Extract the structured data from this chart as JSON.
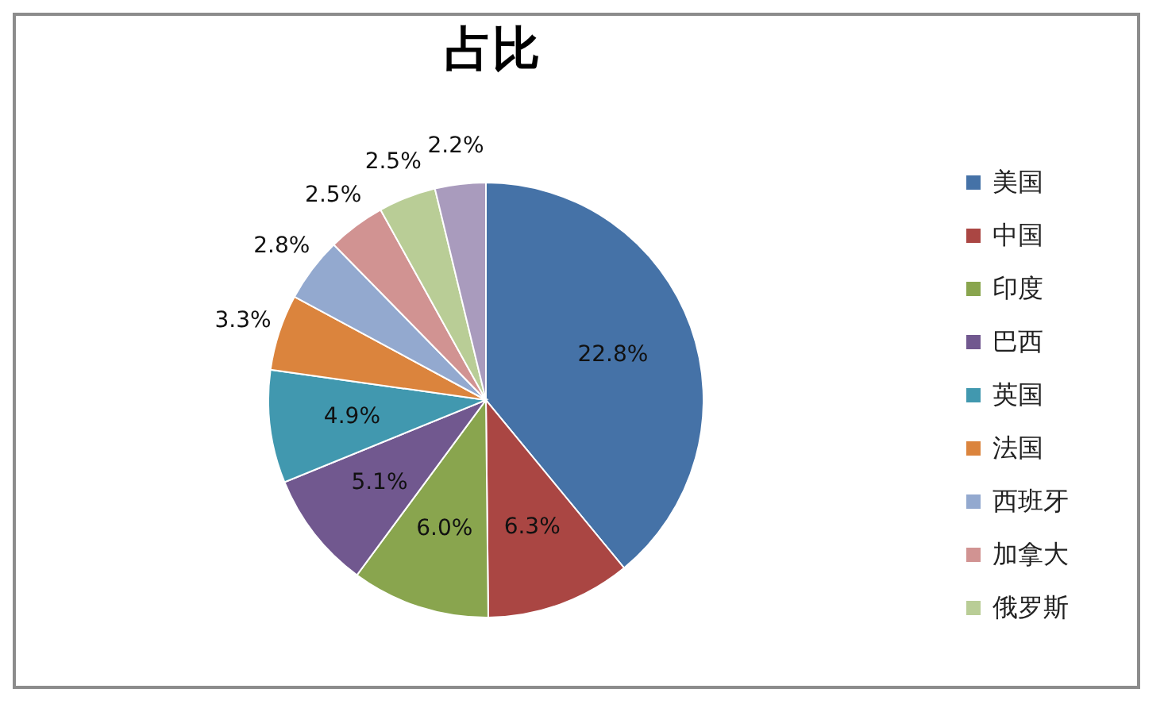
{
  "chart_data": {
    "type": "pie",
    "title": "占比",
    "categories": [
      "美国",
      "中国",
      "印度",
      "巴西",
      "英国",
      "法国",
      "西班牙",
      "加拿大",
      "俄罗斯",
      null
    ],
    "values": [
      22.8,
      6.3,
      6.0,
      5.1,
      4.9,
      3.3,
      2.8,
      2.5,
      2.5,
      2.2
    ],
    "value_labels": [
      "22.8%",
      "6.3%",
      "6.0%",
      "5.1%",
      "4.9%",
      "3.3%",
      "2.8%",
      "2.5%",
      "2.5%",
      "2.2%"
    ],
    "colors": [
      "#4572a7",
      "#aa4643",
      "#89a54e",
      "#71588f",
      "#4198af",
      "#db843d",
      "#93a9cf",
      "#d19392",
      "#b9cd96",
      "#a99bbd"
    ],
    "legend": "right"
  }
}
